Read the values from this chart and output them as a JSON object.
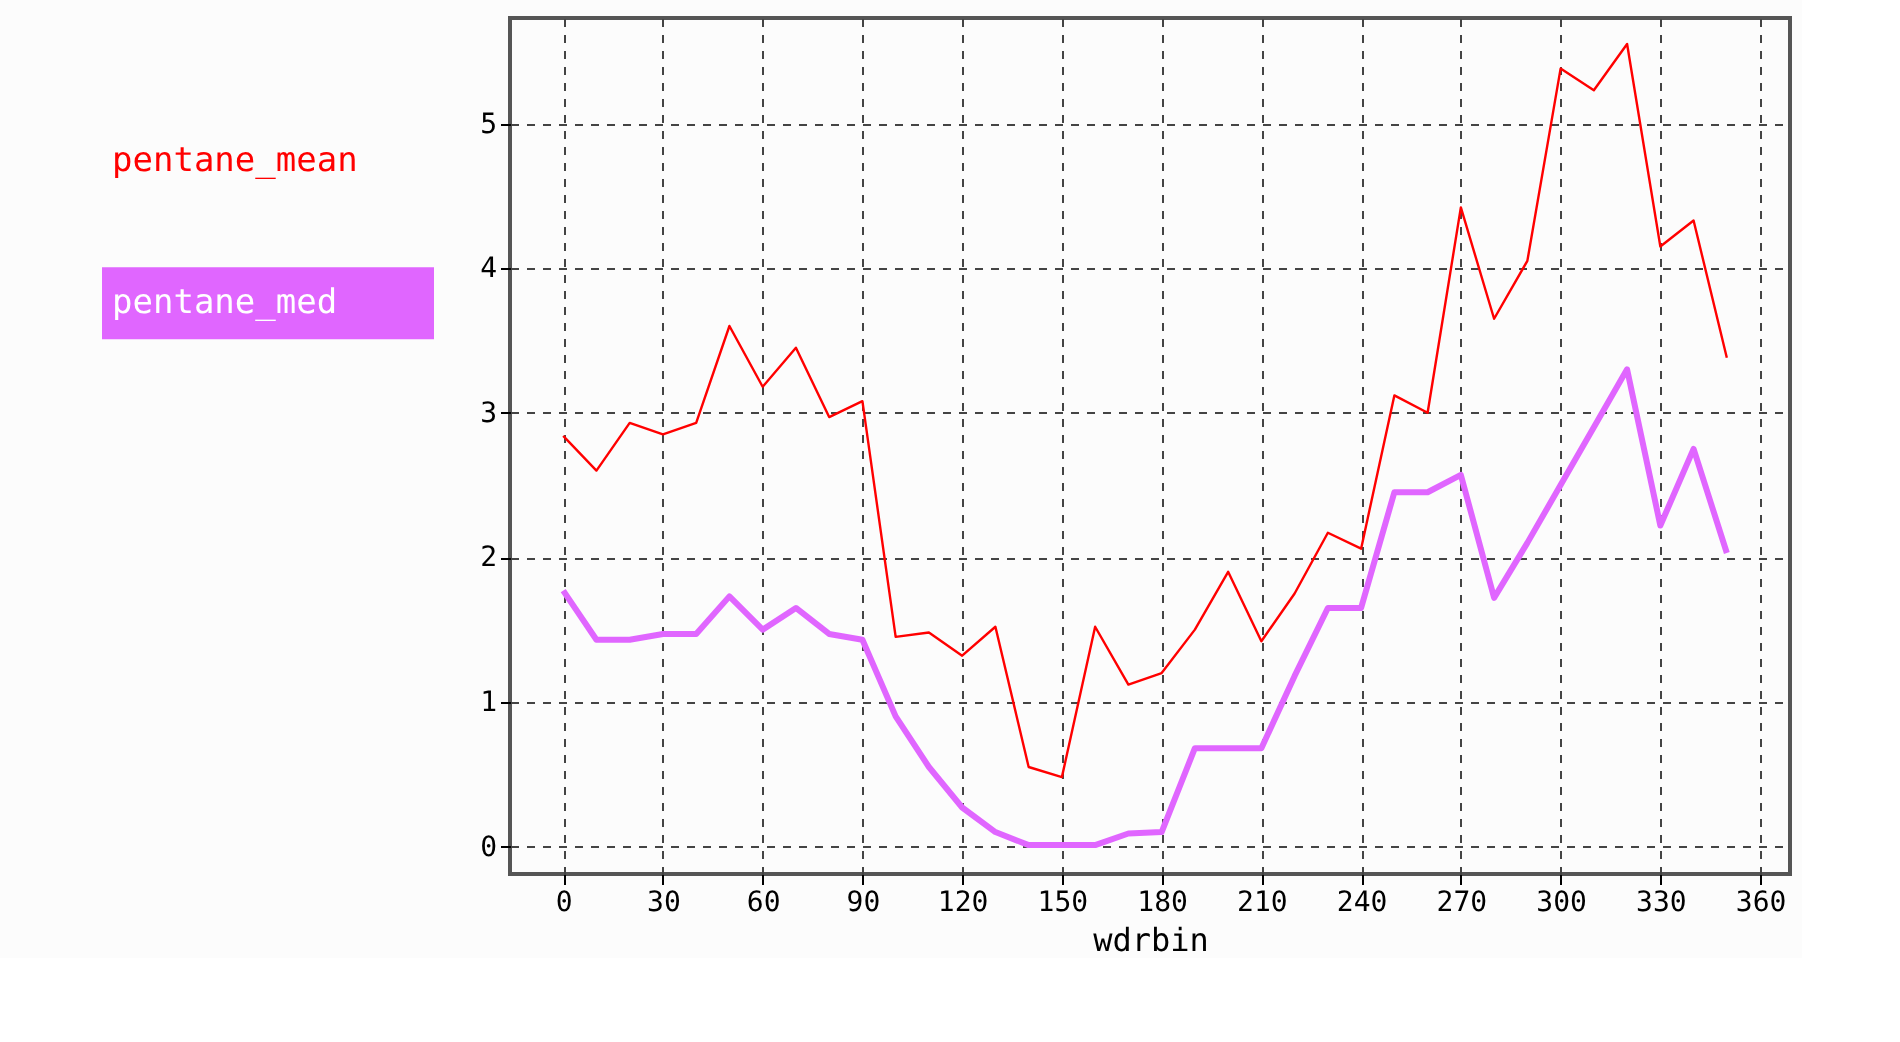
{
  "chart_data": {
    "type": "line",
    "xlabel": "wdrbin",
    "x": [
      0,
      10,
      20,
      30,
      40,
      50,
      60,
      70,
      80,
      90,
      100,
      110,
      120,
      130,
      140,
      150,
      160,
      170,
      180,
      190,
      200,
      210,
      220,
      230,
      240,
      250,
      260,
      270,
      280,
      290,
      300,
      310,
      320,
      330,
      340,
      350
    ],
    "series": [
      {
        "name": "pentane_mean",
        "color": "#ff0000",
        "values": [
          2.84,
          2.6,
          2.93,
          2.85,
          2.93,
          3.6,
          3.18,
          3.45,
          2.97,
          3.08,
          1.45,
          1.48,
          1.32,
          1.52,
          0.55,
          0.48,
          1.52,
          1.12,
          1.2,
          1.5,
          1.9,
          1.42,
          1.75,
          2.17,
          2.06,
          3.12,
          3.0,
          4.42,
          3.65,
          4.05,
          5.38,
          5.23,
          5.55,
          4.15,
          4.33,
          3.38
        ]
      },
      {
        "name": "pentane_med",
        "color": "#e066ff",
        "values": [
          1.77,
          1.43,
          1.43,
          1.47,
          1.47,
          1.73,
          1.5,
          1.65,
          1.47,
          1.43,
          0.9,
          0.55,
          0.27,
          0.1,
          0.01,
          0.01,
          0.01,
          0.09,
          0.1,
          0.68,
          0.68,
          0.68,
          1.18,
          1.65,
          1.65,
          2.45,
          2.45,
          2.57,
          1.72,
          2.1,
          2.5,
          2.9,
          3.3,
          2.22,
          2.75,
          2.03
        ]
      }
    ],
    "xlim": [
      -16,
      369
    ],
    "ylim": [
      -0.19,
      5.73
    ],
    "xticks": [
      0,
      30,
      60,
      90,
      120,
      150,
      180,
      210,
      240,
      270,
      300,
      330,
      360
    ],
    "yticks": [
      0,
      1,
      2,
      3,
      4,
      5
    ],
    "grid": true,
    "legend": "left",
    "marker": "none",
    "line_style": "solid"
  }
}
